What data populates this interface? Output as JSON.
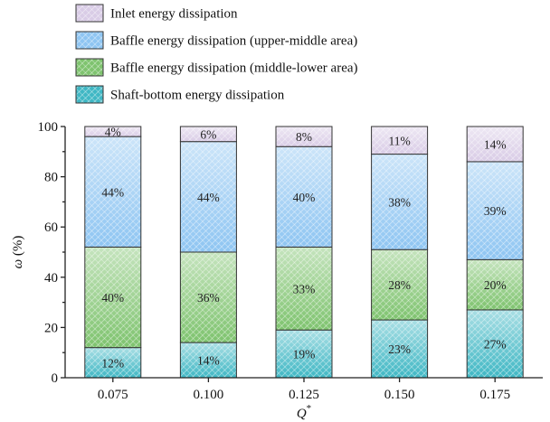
{
  "chart_data": {
    "type": "bar",
    "stacked": true,
    "categories": [
      "0.075",
      "0.100",
      "0.125",
      "0.150",
      "0.175"
    ],
    "series": [
      {
        "name": "Shaft-bottom energy dissipation",
        "color": "#3fb7c4",
        "values": [
          12,
          14,
          19,
          23,
          27
        ],
        "labels": [
          "12%",
          "14%",
          "19%",
          "23%",
          "27%"
        ]
      },
      {
        "name": "Baffle energy dissipation (middle-lower area)",
        "color": "#7ec36e",
        "values": [
          40,
          36,
          33,
          28,
          20
        ],
        "labels": [
          "40%",
          "36%",
          "33%",
          "28%",
          "20%"
        ]
      },
      {
        "name": "Baffle energy dissipation (upper-middle area)",
        "color": "#8ec5f2",
        "values": [
          44,
          44,
          40,
          38,
          39
        ],
        "labels": [
          "44%",
          "44%",
          "40%",
          "38%",
          "39%"
        ]
      },
      {
        "name": "Inlet energy dissipation",
        "color": "#d9cce6",
        "values": [
          4,
          6,
          8,
          11,
          14
        ],
        "labels": [
          "4%",
          "6%",
          "8%",
          "11%",
          "14%"
        ]
      }
    ],
    "ylabel": "ω (%)",
    "ylabel_symbol": "ω",
    "ylabel_unit": "(%)",
    "xlabel": "Q*",
    "xlabel_symbol": "Q",
    "xlabel_sup": "*",
    "ylim": [
      0,
      100
    ],
    "yticks": [
      0,
      20,
      40,
      60,
      80,
      100
    ],
    "ytick_labels": [
      "0",
      "20",
      "40",
      "60",
      "80",
      "100"
    ],
    "legend_position": "top",
    "legend_order": [
      3,
      2,
      1,
      0
    ],
    "grid": false
  }
}
